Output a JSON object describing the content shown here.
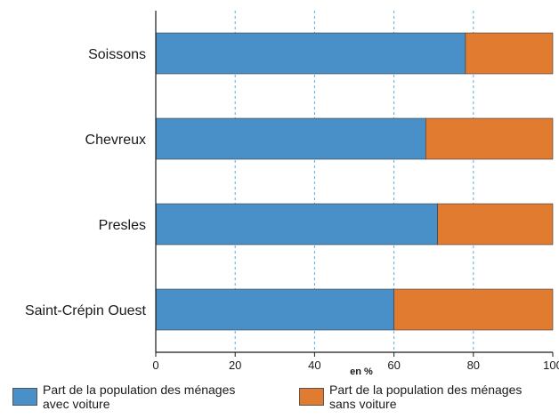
{
  "chart_data": {
    "type": "bar",
    "orientation": "horizontal",
    "stacked": true,
    "categories": [
      "Soissons",
      "Chevreux",
      "Presles",
      "Saint-Crépin Ouest"
    ],
    "series": [
      {
        "name": "Part de la population des ménages avec voiture",
        "color": "#4a90c8",
        "values": [
          78,
          68,
          71,
          60
        ]
      },
      {
        "name": "Part de la population des ménages sans voiture",
        "color": "#e07b30",
        "values": [
          22,
          32,
          29,
          40
        ]
      }
    ],
    "x_ticks": [
      0,
      20,
      40,
      60,
      80,
      100
    ],
    "xlim": [
      0,
      100
    ],
    "x_unit": "en %",
    "grid": "vertical dashed",
    "legend_position": "bottom"
  },
  "legend": {
    "items": [
      {
        "line1": "Part de la population des ménages",
        "line2": "avec voiture",
        "color": "#4a90c8"
      },
      {
        "line1": "Part de la population des ménages",
        "line2": "sans voiture",
        "color": "#e07b30"
      }
    ]
  }
}
